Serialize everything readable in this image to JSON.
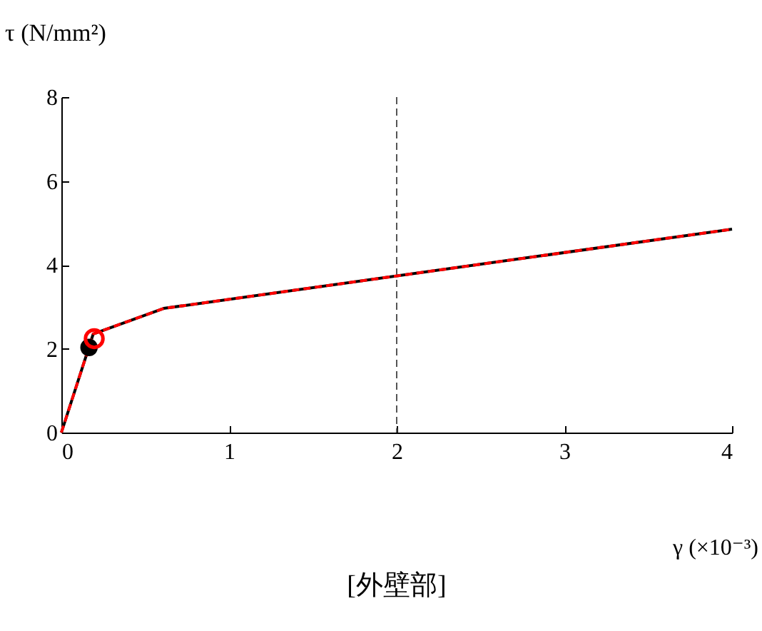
{
  "chart_data": {
    "type": "line",
    "xlabel": "γ (×10⁻³)",
    "ylabel": "τ (N/mm²)",
    "annotations": [
      "[外壁部]"
    ],
    "xlim": [
      0,
      4
    ],
    "xticks": [
      0,
      1,
      2,
      3,
      4
    ],
    "ylim": [
      0,
      8
    ],
    "yticks": [
      0,
      2,
      4,
      6,
      8
    ],
    "grid": false,
    "ref_lines": [
      {
        "axis": "x",
        "value": 2,
        "color": "#555555",
        "line_style": "dashed"
      }
    ],
    "series": [
      {
        "color": "#000000",
        "line_style": "solid",
        "x": [
          0,
          0.19,
          0.61,
          4
        ],
        "values": [
          0,
          2.35,
          2.96,
          4.85
        ]
      },
      {
        "color": "#ff0000",
        "line_style": "dashed",
        "x": [
          0,
          0.19,
          0.61,
          4
        ],
        "values": [
          0,
          2.35,
          2.96,
          4.85
        ]
      },
      {
        "type": "scatter",
        "color": "#000000",
        "marker": "circle",
        "x": [
          0.165
        ],
        "values": [
          2.03
        ]
      },
      {
        "type": "scatter",
        "color": "#ff0000",
        "marker": "circle",
        "x": [
          0.196
        ],
        "values": [
          2.24
        ]
      }
    ]
  }
}
